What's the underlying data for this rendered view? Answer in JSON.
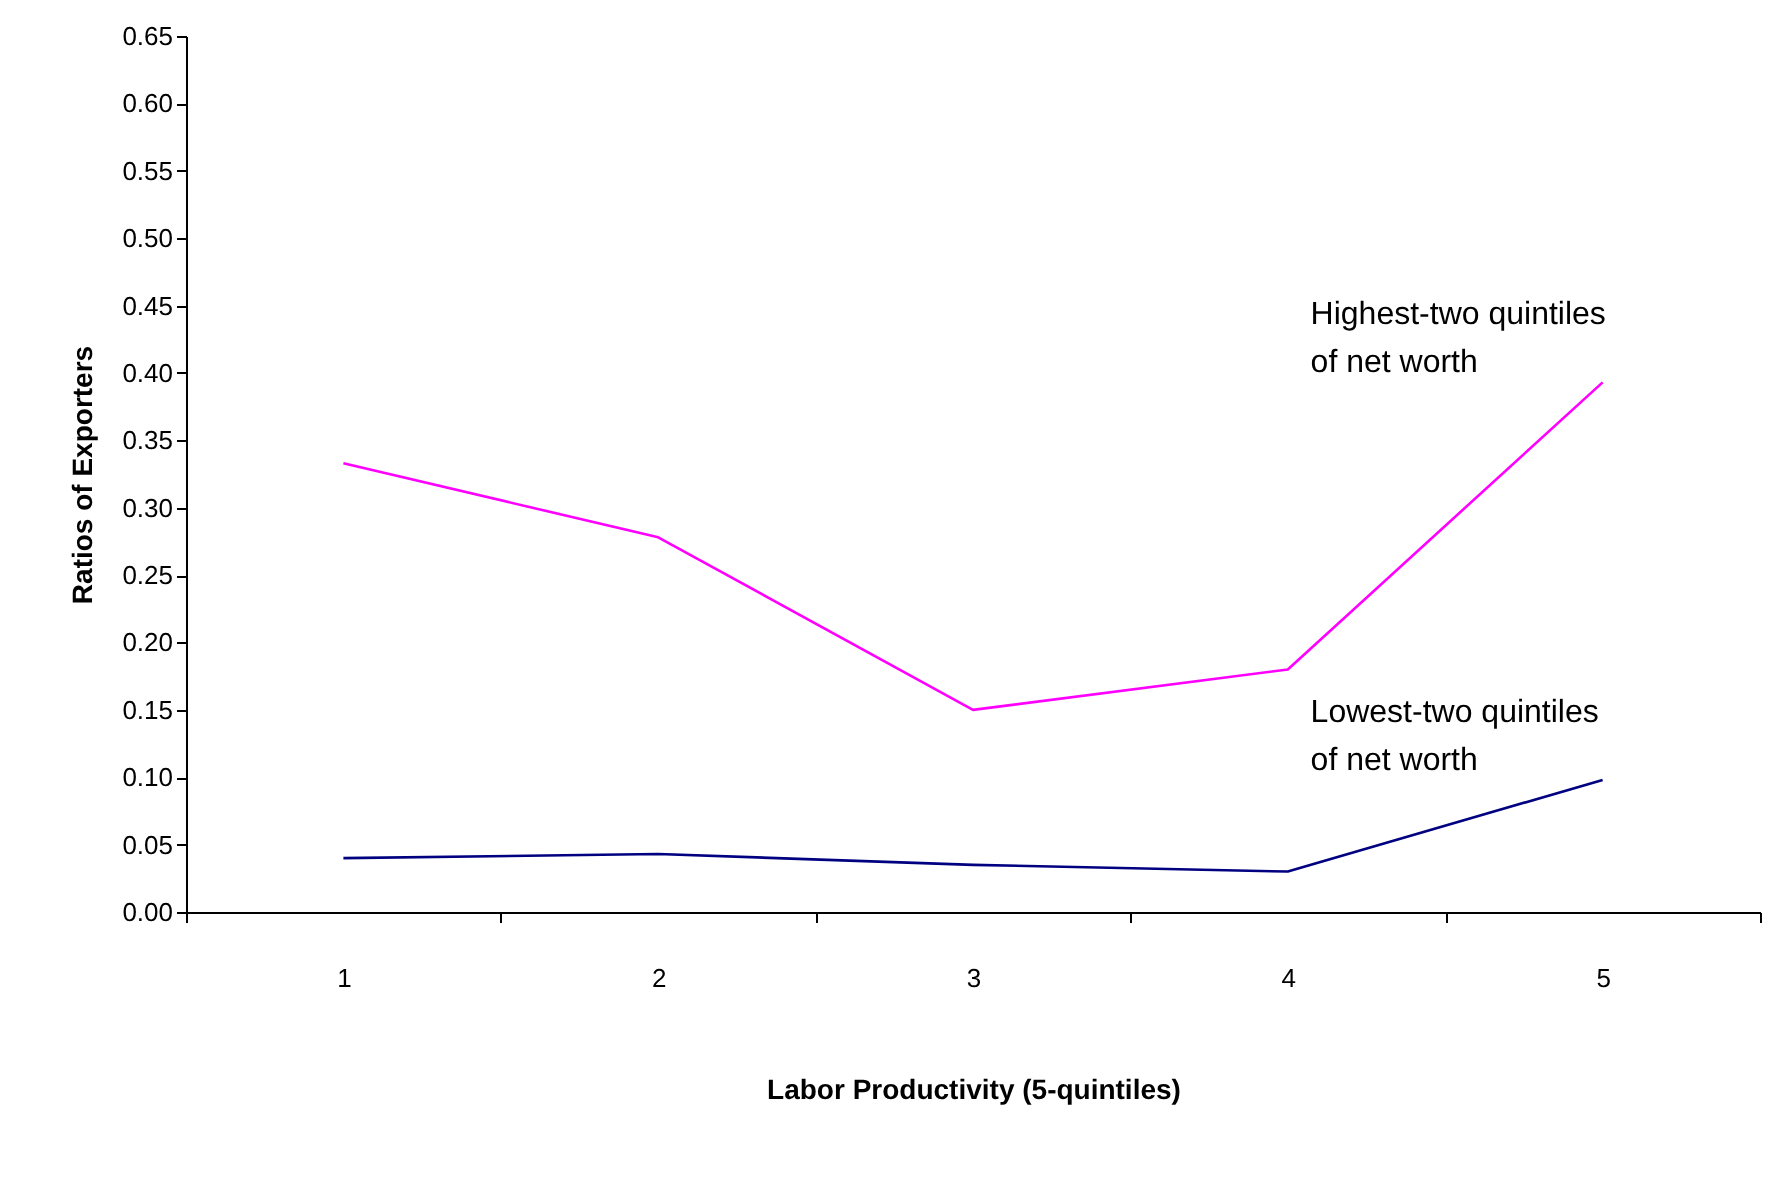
{
  "chart_data": {
    "type": "line",
    "xlabel": "Labor Productivity (5-quintiles)",
    "ylabel": "Ratios of Exporters",
    "categories": [
      "1",
      "2",
      "3",
      "4",
      "5"
    ],
    "series": [
      {
        "name": "Highest-two quintiles\nof net worth",
        "color": "#ff00ff",
        "values": [
          0.333,
          0.278,
          0.15,
          0.18,
          0.393
        ]
      },
      {
        "name": "Lowest-two quintiles\nof net worth",
        "color": "#000080",
        "values": [
          0.04,
          0.043,
          0.035,
          0.03,
          0.098
        ]
      }
    ],
    "ylim": [
      0,
      0.65
    ],
    "yticks": [
      {
        "value": 0,
        "label": "0.00"
      },
      {
        "value": 0.05,
        "label": "0.05"
      },
      {
        "value": 0.1,
        "label": "0.10"
      },
      {
        "value": 0.15,
        "label": "0.15"
      },
      {
        "value": 0.2,
        "label": "0.20"
      },
      {
        "value": 0.25,
        "label": "0.25"
      },
      {
        "value": 0.3,
        "label": "0.30"
      },
      {
        "value": 0.35,
        "label": "0.35"
      },
      {
        "value": 0.4,
        "label": "0.40"
      },
      {
        "value": 0.45,
        "label": "0.45"
      },
      {
        "value": 0.5,
        "label": "0.50"
      },
      {
        "value": 0.55,
        "label": "0.55"
      },
      {
        "value": 0.6,
        "label": "0.60"
      },
      {
        "value": 0.65,
        "label": "0.65"
      }
    ],
    "grid": false,
    "line_style": "solid"
  }
}
